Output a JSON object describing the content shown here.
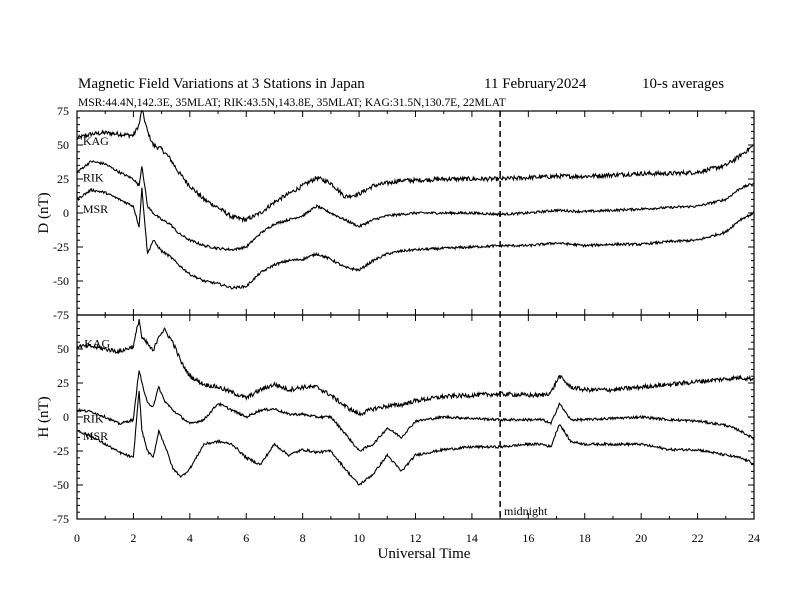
{
  "header": {
    "title": "Magnetic Field Variations at 3 Stations in Japan",
    "date": "11 February2024",
    "averaging": "10-s averages",
    "subtitle": "MSR:44.4N,142.3E, 35MLAT;  RIK:43.5N,143.8E, 35MLAT;  KAG:31.5N,130.7E, 22MLAT"
  },
  "chart_data": [
    {
      "type": "line",
      "panel": "D",
      "ylabel": "D (nT)",
      "ylim": [
        -75,
        75
      ],
      "yticks": [
        "75",
        "50",
        "25",
        "0",
        "-25",
        "-50",
        "-75"
      ],
      "xlim": [
        0,
        24
      ],
      "grid": false,
      "series": [
        {
          "name": "KAG",
          "x": [
            0,
            0.5,
            1,
            1.5,
            2,
            2.2,
            2.3,
            2.5,
            2.7,
            3,
            3.3,
            3.6,
            4,
            4.5,
            5,
            5.5,
            6,
            6.5,
            7,
            7.5,
            8,
            8.5,
            9,
            9.5,
            10,
            10.5,
            11,
            11.5,
            12,
            13,
            14,
            15,
            16,
            17,
            18,
            19,
            20,
            21,
            22,
            23,
            23.5,
            24
          ],
          "y": [
            55,
            58,
            59,
            58,
            57,
            65,
            76,
            60,
            50,
            47,
            40,
            30,
            20,
            10,
            4,
            -3,
            -5,
            0,
            8,
            14,
            20,
            26,
            22,
            12,
            14,
            20,
            22,
            24,
            24,
            25,
            25,
            25,
            26,
            27,
            27,
            28,
            29,
            29,
            30,
            35,
            42,
            50
          ]
        },
        {
          "name": "RIK",
          "x": [
            0,
            0.5,
            1,
            1.5,
            2,
            2.2,
            2.3,
            2.5,
            2.7,
            3,
            3.3,
            3.6,
            4,
            4.5,
            5,
            5.5,
            6,
            6.5,
            7,
            7.5,
            8,
            8.5,
            9,
            9.5,
            10,
            10.5,
            11,
            11.5,
            12,
            13,
            14,
            15,
            16,
            17,
            18,
            19,
            20,
            21,
            22,
            23,
            23.5,
            24
          ],
          "y": [
            30,
            38,
            36,
            30,
            25,
            20,
            35,
            5,
            0,
            -5,
            -8,
            -15,
            -20,
            -24,
            -26,
            -27,
            -25,
            -15,
            -8,
            -5,
            -2,
            5,
            0,
            -5,
            -10,
            -5,
            -2,
            -1,
            0,
            0,
            0,
            -1,
            0,
            2,
            1,
            2,
            3,
            4,
            5,
            10,
            18,
            22
          ]
        },
        {
          "name": "MSR",
          "x": [
            0,
            0.5,
            1,
            1.5,
            2,
            2.2,
            2.3,
            2.5,
            2.7,
            3,
            3.3,
            3.6,
            4,
            4.5,
            5,
            5.5,
            6,
            6.5,
            7,
            7.5,
            8,
            8.5,
            9,
            9.5,
            10,
            10.5,
            11,
            11.5,
            12,
            13,
            14,
            15,
            16,
            17,
            18,
            19,
            20,
            21,
            22,
            23,
            23.5,
            24
          ],
          "y": [
            10,
            17,
            15,
            10,
            5,
            -10,
            18,
            -30,
            -20,
            -28,
            -32,
            -38,
            -45,
            -50,
            -52,
            -55,
            -54,
            -44,
            -38,
            -35,
            -34,
            -30,
            -34,
            -40,
            -42,
            -35,
            -30,
            -28,
            -27,
            -26,
            -25,
            -24,
            -24,
            -22,
            -24,
            -23,
            -23,
            -21,
            -20,
            -14,
            -5,
            0
          ]
        }
      ],
      "station_labels": [
        {
          "text": "KAG",
          "x": 0.1,
          "y": 53
        },
        {
          "text": "RIK",
          "x": 0.1,
          "y": 26
        },
        {
          "text": "MSR",
          "x": 0.1,
          "y": 3
        }
      ]
    },
    {
      "type": "line",
      "panel": "H",
      "ylabel": "H (nT)",
      "ylim": [
        -75,
        75
      ],
      "yticks": [
        "",
        "50",
        "25",
        "0",
        "-25",
        "-50",
        "-75"
      ],
      "xlim": [
        0,
        24
      ],
      "grid": false,
      "series": [
        {
          "name": "KAG",
          "x": [
            0,
            0.5,
            1,
            1.5,
            2,
            2.2,
            2.3,
            2.5,
            2.7,
            2.9,
            3.1,
            3.4,
            3.7,
            4,
            4.5,
            5,
            5.5,
            6,
            6.5,
            7,
            7.5,
            8,
            8.5,
            9,
            9.5,
            10,
            10.5,
            11,
            11.5,
            12,
            13,
            14,
            15,
            16,
            16.5,
            16.8,
            17.1,
            17.5,
            18,
            19,
            20,
            21,
            22,
            23,
            23.5,
            24
          ],
          "y": [
            52,
            52,
            50,
            48,
            52,
            72,
            58,
            54,
            48,
            60,
            64,
            55,
            40,
            30,
            24,
            22,
            18,
            14,
            20,
            24,
            20,
            22,
            22,
            16,
            8,
            2,
            6,
            8,
            9,
            12,
            15,
            16,
            17,
            16,
            16,
            18,
            30,
            22,
            20,
            20,
            22,
            24,
            26,
            28,
            29,
            28
          ]
        },
        {
          "name": "RIK",
          "x": [
            0,
            0.5,
            1,
            1.5,
            2,
            2.2,
            2.3,
            2.5,
            2.7,
            2.9,
            3.1,
            3.4,
            3.7,
            4,
            4.5,
            5,
            5.5,
            6,
            6.5,
            7,
            7.5,
            8,
            8.5,
            9,
            9.5,
            10,
            10.5,
            11,
            11.5,
            12,
            13,
            14,
            15,
            16,
            16.5,
            16.8,
            17.1,
            17.5,
            18,
            19,
            20,
            21,
            22,
            23,
            23.5,
            24
          ],
          "y": [
            5,
            4,
            0,
            -5,
            -2,
            35,
            25,
            10,
            8,
            22,
            12,
            5,
            0,
            -5,
            -2,
            10,
            5,
            0,
            5,
            6,
            2,
            2,
            0,
            0,
            -12,
            -25,
            -20,
            -8,
            -15,
            -3,
            0,
            -1,
            -2,
            -2,
            -2,
            -5,
            10,
            -2,
            -2,
            -1,
            0,
            -2,
            -3,
            -6,
            -10,
            -16
          ]
        },
        {
          "name": "MSR",
          "x": [
            0,
            0.5,
            1,
            1.5,
            2,
            2.2,
            2.3,
            2.5,
            2.7,
            2.9,
            3.1,
            3.4,
            3.7,
            4,
            4.5,
            5,
            5.5,
            6,
            6.5,
            7,
            7.5,
            8,
            8.5,
            9,
            9.5,
            10,
            10.5,
            11,
            11.5,
            12,
            13,
            14,
            15,
            16,
            16.5,
            16.8,
            17.1,
            17.5,
            18,
            19,
            20,
            21,
            22,
            23,
            23.5,
            24
          ],
          "y": [
            -10,
            -14,
            -20,
            -26,
            -30,
            20,
            -10,
            -25,
            -30,
            -10,
            -20,
            -38,
            -44,
            -38,
            -20,
            -18,
            -20,
            -30,
            -35,
            -20,
            -28,
            -24,
            -26,
            -25,
            -38,
            -50,
            -42,
            -28,
            -40,
            -28,
            -24,
            -22,
            -22,
            -20,
            -20,
            -22,
            -5,
            -18,
            -20,
            -20,
            -20,
            -24,
            -24,
            -28,
            -30,
            -34
          ]
        }
      ],
      "station_labels": [
        {
          "text": "KAG",
          "x": 0.15,
          "y": 54
        },
        {
          "text": "RIK",
          "x": 0.1,
          "y": -1
        },
        {
          "text": "MSR",
          "x": 0.1,
          "y": -14
        }
      ]
    }
  ],
  "xaxis": {
    "label": "Universal Time",
    "ticks": [
      "0",
      "2",
      "4",
      "6",
      "8",
      "10",
      "12",
      "14",
      "16",
      "18",
      "20",
      "22",
      "24"
    ]
  },
  "annotation": {
    "text": "midnight",
    "x": 15
  },
  "colors": {
    "line": "#000000",
    "background": "#ffffff"
  }
}
